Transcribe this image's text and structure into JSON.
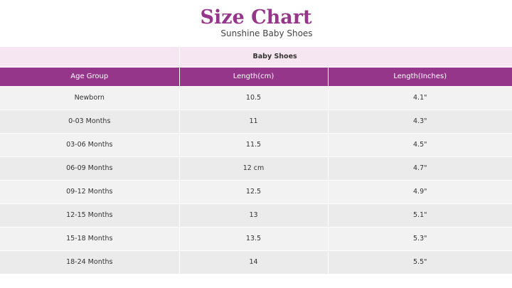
{
  "title": "Size Chart",
  "subtitle": "Sunshine Baby Shoes",
  "table": {
    "group_label": "Baby Shoes",
    "headers": [
      "Age Group",
      "Length(cm)",
      "Length(Inches)"
    ],
    "rows": [
      [
        "Newborn",
        "10.5",
        "4.1\""
      ],
      [
        "0-03 Months",
        "11",
        "4.3\""
      ],
      [
        "03-06 Months",
        "11.5",
        "4.5\""
      ],
      [
        "06-09 Months",
        "12 cm",
        "4.7\""
      ],
      [
        "09-12 Months",
        "12.5",
        "4.9\""
      ],
      [
        "12-15 Months",
        "13",
        "5.1\""
      ],
      [
        "15-18 Months",
        "13.5",
        "5.3\""
      ],
      [
        "18-24 Months",
        "14",
        "5.5\""
      ]
    ]
  },
  "colors": {
    "accent": "#96368a",
    "group_bg": "#f6e6f2"
  }
}
